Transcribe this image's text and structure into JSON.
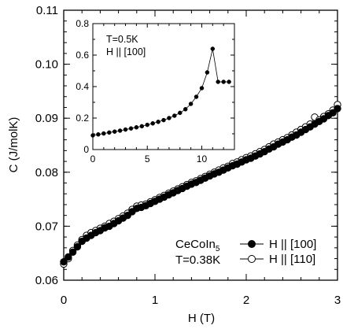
{
  "chart_data": [
    {
      "type": "scatter",
      "xlabel": "H (T)",
      "ylabel": "C (J/molK)",
      "xlim": [
        0,
        3
      ],
      "ylim": [
        0.06,
        0.11
      ],
      "xticks": [
        "0",
        "1",
        "2",
        "3"
      ],
      "yticks": [
        "0.06",
        "0.07",
        "0.08",
        "0.09",
        "0.10",
        "0.11"
      ],
      "annotation": {
        "material_main": "CeCoIn",
        "material_sub": "5",
        "temperature": "T=0.38K"
      },
      "series": [
        {
          "name": "H || [100]",
          "marker": "filled-circle",
          "x": [
            0.0,
            0.05,
            0.1,
            0.15,
            0.2,
            0.25,
            0.3,
            0.35,
            0.4,
            0.45,
            0.5,
            0.55,
            0.6,
            0.65,
            0.7,
            0.75,
            0.8,
            0.85,
            0.9,
            0.95,
            1.0,
            1.05,
            1.1,
            1.15,
            1.2,
            1.25,
            1.3,
            1.35,
            1.4,
            1.45,
            1.5,
            1.55,
            1.6,
            1.65,
            1.7,
            1.75,
            1.8,
            1.85,
            1.9,
            1.95,
            2.0,
            2.05,
            2.1,
            2.15,
            2.2,
            2.25,
            2.3,
            2.35,
            2.4,
            2.45,
            2.5,
            2.55,
            2.6,
            2.65,
            2.7,
            2.75,
            2.8,
            2.85,
            2.9,
            2.95,
            3.0
          ],
          "y": [
            0.0634,
            0.0643,
            0.0652,
            0.0662,
            0.0672,
            0.0678,
            0.0683,
            0.0688,
            0.0692,
            0.0697,
            0.07,
            0.0705,
            0.071,
            0.0715,
            0.072,
            0.0727,
            0.0733,
            0.0735,
            0.0738,
            0.0742,
            0.0746,
            0.075,
            0.0754,
            0.0758,
            0.0762,
            0.0766,
            0.077,
            0.0774,
            0.0778,
            0.0781,
            0.0785,
            0.0789,
            0.0793,
            0.0797,
            0.08,
            0.0804,
            0.0808,
            0.0812,
            0.0815,
            0.0819,
            0.0823,
            0.0826,
            0.083,
            0.0834,
            0.0838,
            0.0843,
            0.0847,
            0.0852,
            0.0856,
            0.086,
            0.0865,
            0.0869,
            0.0874,
            0.0879,
            0.0884,
            0.0889,
            0.0894,
            0.0899,
            0.0905,
            0.091,
            0.0918
          ]
        },
        {
          "name": "H || [110]",
          "marker": "open-circle",
          "x": [
            0.0,
            0.05,
            0.1,
            0.15,
            0.2,
            0.25,
            0.3,
            0.35,
            0.4,
            0.45,
            0.5,
            0.55,
            0.6,
            0.65,
            0.7,
            0.75,
            0.8,
            0.85,
            0.9,
            0.95,
            1.0,
            1.05,
            1.1,
            1.15,
            1.2,
            1.25,
            1.3,
            1.35,
            1.4,
            1.45,
            1.5,
            1.55,
            1.6,
            1.65,
            1.7,
            1.75,
            1.8,
            1.85,
            1.9,
            1.95,
            2.0,
            2.05,
            2.1,
            2.15,
            2.2,
            2.25,
            2.3,
            2.35,
            2.4,
            2.45,
            2.5,
            2.55,
            2.6,
            2.65,
            2.7,
            2.75,
            2.8,
            2.85,
            2.9,
            2.95,
            3.0
          ],
          "y": [
            0.063,
            0.064,
            0.0655,
            0.0665,
            0.0675,
            0.0683,
            0.0688,
            0.0692,
            0.0696,
            0.07,
            0.0705,
            0.0709,
            0.0714,
            0.0719,
            0.0724,
            0.0731,
            0.0737,
            0.0739,
            0.0741,
            0.0745,
            0.0749,
            0.0753,
            0.0757,
            0.0761,
            0.0765,
            0.0769,
            0.0773,
            0.0777,
            0.0781,
            0.0784,
            0.0788,
            0.0792,
            0.0796,
            0.08,
            0.0804,
            0.0808,
            0.0811,
            0.0816,
            0.0819,
            0.0823,
            0.0827,
            0.083,
            0.0834,
            0.0838,
            0.0842,
            0.0847,
            0.0852,
            0.0856,
            0.086,
            0.0864,
            0.0869,
            0.0874,
            0.0879,
            0.0884,
            0.0889,
            0.0902,
            0.0897,
            0.0903,
            0.0908,
            0.0915,
            0.0925
          ]
        }
      ]
    },
    {
      "type": "line",
      "xlim": [
        0,
        13
      ],
      "ylim": [
        0,
        0.8
      ],
      "xticks": [
        "0",
        "5",
        "10"
      ],
      "yticks": [
        "0",
        "0.2",
        "0.4",
        "0.6",
        "0.8"
      ],
      "annotation": {
        "line1": "T=0.5K",
        "line2": "H || [100]"
      },
      "series": [
        {
          "marker": "filled-circle",
          "x": [
            0,
            0.5,
            1,
            1.5,
            2,
            2.5,
            3,
            3.5,
            4,
            4.5,
            5,
            5.5,
            6,
            6.5,
            7,
            7.5,
            8,
            8.5,
            9,
            9.5,
            10,
            10.5,
            11,
            11.5,
            12,
            12.5
          ],
          "y": [
            0.09,
            0.096,
            0.102,
            0.108,
            0.114,
            0.12,
            0.127,
            0.134,
            0.141,
            0.148,
            0.157,
            0.166,
            0.176,
            0.187,
            0.2,
            0.215,
            0.233,
            0.256,
            0.29,
            0.335,
            0.39,
            0.49,
            0.64,
            0.43,
            0.43,
            0.43
          ]
        }
      ]
    }
  ]
}
